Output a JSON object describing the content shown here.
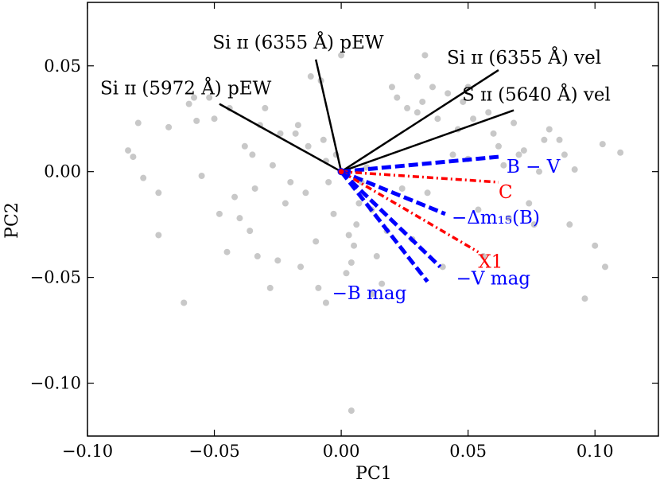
{
  "chart_data": {
    "type": "scatter",
    "title": "",
    "xlabel": "PC1",
    "ylabel": "PC2",
    "xlim": [
      -0.1,
      0.125
    ],
    "ylim": [
      -0.125,
      0.08
    ],
    "xticks": [
      -0.1,
      -0.05,
      0.0,
      0.05,
      0.1
    ],
    "xtick_labels": [
      "−0.10",
      "−0.05",
      "0.00",
      "0.05",
      "0.10"
    ],
    "yticks": [
      -0.1,
      -0.05,
      0.0,
      0.05
    ],
    "ytick_labels": [
      "−0.10",
      "−0.05",
      "0.00",
      "0.05"
    ],
    "grid": false,
    "points": {
      "color": "#c8c8c8",
      "x": [
        -0.084,
        -0.082,
        -0.08,
        -0.078,
        -0.072,
        -0.072,
        -0.068,
        -0.062,
        -0.06,
        -0.058,
        -0.057,
        -0.055,
        -0.052,
        -0.05,
        -0.048,
        -0.045,
        -0.044,
        -0.042,
        -0.04,
        -0.038,
        -0.036,
        -0.035,
        -0.034,
        -0.033,
        -0.032,
        -0.03,
        -0.028,
        -0.027,
        -0.025,
        -0.024,
        -0.022,
        -0.02,
        -0.018,
        -0.017,
        -0.016,
        -0.014,
        -0.013,
        -0.012,
        -0.01,
        -0.009,
        -0.008,
        -0.007,
        -0.006,
        -0.005,
        -0.003,
        -0.002,
        0.0,
        0.002,
        0.003,
        0.004,
        0.005,
        0.006,
        0.007,
        0.008,
        0.01,
        0.012,
        0.014,
        0.016,
        0.018,
        0.02,
        0.022,
        0.024,
        0.026,
        0.028,
        0.03,
        0.032,
        0.033,
        0.034,
        0.036,
        0.038,
        0.04,
        0.042,
        0.044,
        0.046,
        0.048,
        0.05,
        0.052,
        0.054,
        0.056,
        0.058,
        0.06,
        0.062,
        0.064,
        0.066,
        0.068,
        0.07,
        0.072,
        0.074,
        0.076,
        0.078,
        0.08,
        0.082,
        0.086,
        0.088,
        0.09,
        0.092,
        0.096,
        0.1,
        0.103,
        0.104,
        0.11,
        0.004,
        -0.006,
        0.012,
        0.03,
        0.05
      ],
      "y": [
        0.01,
        0.007,
        0.023,
        -0.003,
        -0.01,
        -0.03,
        0.021,
        -0.062,
        0.032,
        0.035,
        0.024,
        -0.002,
        0.035,
        0.025,
        -0.02,
        -0.038,
        0.03,
        -0.012,
        -0.022,
        0.012,
        -0.028,
        0.008,
        -0.008,
        -0.04,
        0.022,
        0.03,
        -0.055,
        0.003,
        -0.042,
        0.018,
        -0.015,
        -0.005,
        0.018,
        0.022,
        -0.045,
        -0.01,
        0.012,
        0.045,
        -0.033,
        -0.055,
        0.043,
        0.015,
        0.005,
        -0.005,
        -0.02,
        0.008,
        0.055,
        -0.048,
        -0.03,
        -0.043,
        -0.035,
        -0.025,
        -0.015,
        -0.005,
        0.002,
        -0.018,
        -0.04,
        -0.053,
        -0.028,
        0.04,
        0.035,
        -0.008,
        0.03,
        -0.032,
        0.045,
        0.033,
        0.055,
        -0.01,
        0.04,
        0.025,
        -0.045,
        0.037,
        0.008,
        0.02,
        0.033,
        0.04,
        0.025,
        -0.018,
        -0.04,
        0.028,
        0.018,
        0.012,
        0.003,
        -0.022,
        0.023,
        0.008,
        0.01,
        -0.015,
        -0.025,
        0.0,
        0.015,
        0.02,
        0.015,
        0.008,
        -0.025,
        0.001,
        -0.06,
        -0.035,
        0.013,
        -0.045,
        0.009,
        -0.113,
        -0.062,
        -0.058,
        0.028,
        0.006
      ]
    },
    "vectors": [
      {
        "name": "si-ii-5972-pew",
        "label": "Si ɪɪ (5972 Å) pEW",
        "color": "#000000",
        "style": "solid",
        "x": -0.048,
        "y": 0.032
      },
      {
        "name": "si-ii-6355-pew",
        "label": "Si ɪɪ (6355 Å) pEW",
        "color": "#000000",
        "style": "solid",
        "x": -0.01,
        "y": 0.053
      },
      {
        "name": "si-ii-6355-vel",
        "label": "Si ɪɪ (6355 Å) vel",
        "color": "#000000",
        "style": "solid",
        "x": 0.062,
        "y": 0.048
      },
      {
        "name": "s-ii-5640-vel",
        "label": "S ɪɪ (5640 Å) vel",
        "color": "#000000",
        "style": "solid",
        "x": 0.068,
        "y": 0.029
      },
      {
        "name": "b-minus-v",
        "label": "B − V",
        "color": "#0000ff",
        "style": "dashed",
        "x": 0.062,
        "y": 0.007
      },
      {
        "name": "c-param",
        "label": "C",
        "color": "#ff0000",
        "style": "dashdot",
        "x": 0.062,
        "y": -0.005
      },
      {
        "name": "delta-m15",
        "label": "−Δm₁₅(B)",
        "color": "#0000ff",
        "style": "dashed",
        "x": 0.041,
        "y": -0.02
      },
      {
        "name": "x1-param",
        "label": "X1",
        "color": "#ff0000",
        "style": "dashdot",
        "x": 0.054,
        "y": -0.038
      },
      {
        "name": "v-mag",
        "label": "−V mag",
        "color": "#0000ff",
        "style": "dashed",
        "x": 0.039,
        "y": -0.045
      },
      {
        "name": "b-mag",
        "label": "−B mag",
        "color": "#0000ff",
        "style": "dashed",
        "x": 0.034,
        "y": -0.052
      }
    ]
  }
}
